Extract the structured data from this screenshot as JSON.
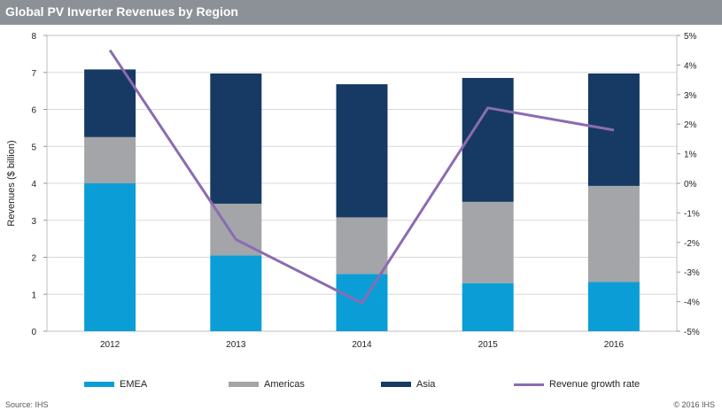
{
  "header": {
    "title": "Global  PV Inverter Revenues by Region"
  },
  "chart_data": {
    "type": "bar",
    "stacked": true,
    "title": "Global  PV Inverter Revenues by Region",
    "ylabel": "Revenues ($ billion)",
    "xlabel": "",
    "categories": [
      "2012",
      "2013",
      "2014",
      "2015",
      "2016"
    ],
    "series": [
      {
        "name": "EMEA",
        "color": "#0b9ed6",
        "values": [
          4.0,
          2.05,
          1.55,
          1.3,
          1.33
        ]
      },
      {
        "name": "Americas",
        "color": "#a3a5a8",
        "values": [
          1.25,
          1.4,
          1.53,
          2.2,
          2.6
        ]
      },
      {
        "name": "Asia",
        "color": "#163a63",
        "values": [
          1.83,
          3.52,
          3.6,
          3.35,
          3.04
        ]
      }
    ],
    "ylim": [
      0,
      8
    ],
    "yticks": [
      "0",
      "1",
      "2",
      "3",
      "4",
      "5",
      "6",
      "7",
      "8"
    ],
    "line_series": {
      "name": "Revenue growth rate",
      "color": "#8c6bb1",
      "axis": "right",
      "values": [
        4.5,
        -1.9,
        -4.05,
        2.55,
        1.8
      ]
    },
    "y2lim": [
      -5,
      5
    ],
    "y2ticks": [
      "-5%",
      "-4%",
      "-3%",
      "-2%",
      "-1%",
      "0%",
      "1%",
      "2%",
      "3%",
      "4%",
      "5%"
    ],
    "grid": true,
    "legend_position": "bottom"
  },
  "legend": {
    "items": [
      {
        "label": "EMEA",
        "color": "#0b9ed6"
      },
      {
        "label": "Americas",
        "color": "#a3a5a8"
      },
      {
        "label": "Asia",
        "color": "#163a63"
      },
      {
        "label": "Revenue growth rate",
        "color": "#8c6bb1"
      }
    ]
  },
  "footer": {
    "source": "Source:  IHS",
    "copyright": "© 2016  IHS"
  }
}
